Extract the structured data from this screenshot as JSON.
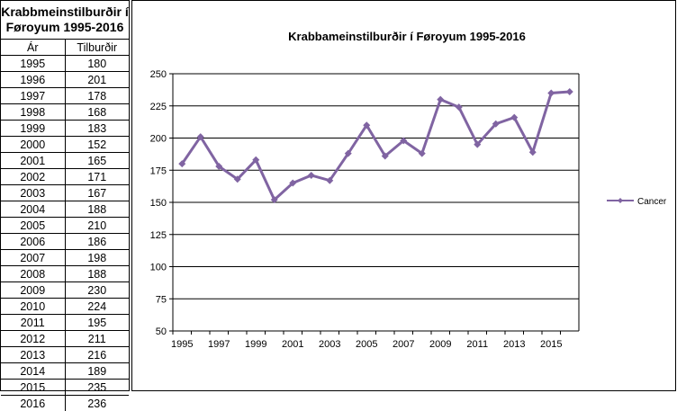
{
  "table": {
    "title_line1": "Krabbmeinstilburðir í",
    "title_line2": "Føroyum 1995-2016",
    "col_year": "Ár",
    "col_cases": "Tilburðir",
    "rows": [
      {
        "year": "1995",
        "value": "180"
      },
      {
        "year": "1996",
        "value": "201"
      },
      {
        "year": "1997",
        "value": "178"
      },
      {
        "year": "1998",
        "value": "168"
      },
      {
        "year": "1999",
        "value": "183"
      },
      {
        "year": "2000",
        "value": "152"
      },
      {
        "year": "2001",
        "value": "165"
      },
      {
        "year": "2002",
        "value": "171"
      },
      {
        "year": "2003",
        "value": "167"
      },
      {
        "year": "2004",
        "value": "188"
      },
      {
        "year": "2005",
        "value": "210"
      },
      {
        "year": "2006",
        "value": "186"
      },
      {
        "year": "2007",
        "value": "198"
      },
      {
        "year": "2008",
        "value": "188"
      },
      {
        "year": "2009",
        "value": "230"
      },
      {
        "year": "2010",
        "value": "224"
      },
      {
        "year": "2011",
        "value": "195"
      },
      {
        "year": "2012",
        "value": "211"
      },
      {
        "year": "2013",
        "value": "216"
      },
      {
        "year": "2014",
        "value": "189"
      },
      {
        "year": "2015",
        "value": "235"
      },
      {
        "year": "2016",
        "value": "236"
      }
    ]
  },
  "chart_data": {
    "type": "line",
    "title": "Krabbameinstilburðir í Føroyum 1995-2016",
    "xlabel": "",
    "ylabel": "",
    "x": [
      1995,
      1996,
      1997,
      1998,
      1999,
      2000,
      2001,
      2002,
      2003,
      2004,
      2005,
      2006,
      2007,
      2008,
      2009,
      2010,
      2011,
      2012,
      2013,
      2014,
      2015,
      2016
    ],
    "x_tick_labels": [
      "1995",
      "1997",
      "1999",
      "2001",
      "2003",
      "2005",
      "2007",
      "2009",
      "2011",
      "2013",
      "2015"
    ],
    "series": [
      {
        "name": "Cancer",
        "color": "#8064a2",
        "values": [
          180,
          201,
          178,
          168,
          183,
          152,
          165,
          171,
          167,
          188,
          210,
          186,
          198,
          188,
          230,
          224,
          195,
          211,
          216,
          189,
          235,
          236
        ]
      }
    ],
    "ylim": [
      50,
      250
    ],
    "y_ticks": [
      50,
      75,
      100,
      125,
      150,
      175,
      200,
      225,
      250
    ],
    "grid": "horizontal",
    "legend_position": "right"
  }
}
